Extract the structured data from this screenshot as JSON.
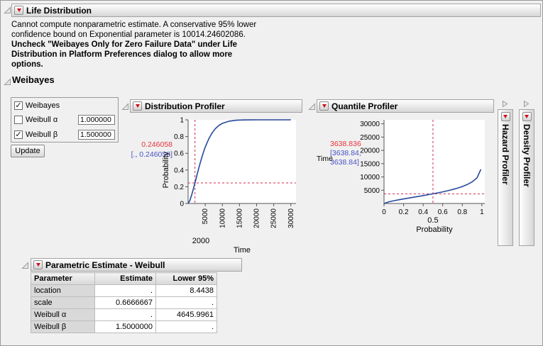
{
  "life_distribution": {
    "title": "Life Distribution",
    "message": [
      "Cannot compute nonparametric estimate. A conservative 95% lower",
      "confidence bound on Exponential parameter is 10014.24602086.",
      "Uncheck \"Weibayes Only for Zero Failure Data\" under Life",
      "Distribution in Platform Preferences dialog to allow more",
      "options."
    ]
  },
  "weibayes": {
    "title": "Weibayes",
    "options": [
      {
        "label": "Weibayes",
        "checked": true
      },
      {
        "label": "Weibull α",
        "checked": false,
        "value": "1.000000"
      },
      {
        "label": "Weibull β",
        "checked": true,
        "value": "1.500000"
      }
    ],
    "update_label": "Update"
  },
  "panels": {
    "distribution": {
      "title": "Distribution Profiler"
    },
    "quantile": {
      "title": "Quantile Profiler"
    },
    "hazard": {
      "title": "Hazard Profiler"
    },
    "density": {
      "title": "Density Profiler"
    }
  },
  "chart_data": [
    {
      "type": "line",
      "title": "Distribution Profiler",
      "xlabel": "Time",
      "ylabel": "Probability",
      "xlim": [
        0,
        31500
      ],
      "ylim": [
        0,
        1
      ],
      "xticks": [
        5000,
        10000,
        15000,
        20000,
        25000,
        30000
      ],
      "yticks": [
        0,
        0.2,
        0.4,
        0.6,
        0.8,
        1
      ],
      "xtick_rotate": true,
      "x": [
        0,
        500,
        1000,
        1500,
        2000,
        2500,
        3000,
        3500,
        4000,
        4500,
        5000,
        6000,
        7000,
        8000,
        9000,
        10000,
        12000,
        14000,
        16000,
        18000,
        20000,
        25000,
        30000
      ],
      "y": [
        0,
        0.035,
        0.095,
        0.168,
        0.246,
        0.326,
        0.405,
        0.48,
        0.55,
        0.615,
        0.673,
        0.77,
        0.843,
        0.896,
        0.933,
        0.958,
        0.984,
        0.995,
        0.998,
        0.9995,
        0.9999,
        1,
        1
      ],
      "crosshair": {
        "x": 2000,
        "y": 0.246058
      },
      "current_y": "0.246058",
      "ci_y": [
        "[., 0.246058]"
      ],
      "current_x": "2000"
    },
    {
      "type": "line",
      "title": "Quantile Profiler",
      "xlabel": "Probability",
      "ylabel": "Time",
      "xlim": [
        0,
        1.03
      ],
      "ylim": [
        0,
        31500
      ],
      "xticks": [
        0,
        0.2,
        0.4,
        0.6,
        0.8,
        1
      ],
      "yticks": [
        5000,
        10000,
        15000,
        20000,
        25000,
        30000
      ],
      "xtick_rotate": false,
      "x": [
        0,
        0.05,
        0.1,
        0.15,
        0.2,
        0.25,
        0.3,
        0.35,
        0.4,
        0.45,
        0.5,
        0.55,
        0.6,
        0.65,
        0.7,
        0.75,
        0.8,
        0.85,
        0.9,
        0.95,
        0.99
      ],
      "y": [
        0,
        641,
        1037,
        1383,
        1709,
        2025,
        2337,
        2650,
        2969,
        3297,
        3639,
        3999,
        4383,
        4799,
        5258,
        5776,
        6381,
        7121,
        8103,
        9650,
        12859
      ],
      "crosshair": {
        "x": 0.5,
        "y": 3638.836
      },
      "current_y": "3638.836",
      "ci_y": [
        "[3638.84,",
        "3638.84]"
      ],
      "current_x": "0.5"
    }
  ],
  "estimates": {
    "title": "Parametric Estimate - Weibull",
    "columns": [
      "Parameter",
      "Estimate",
      "Lower 95%"
    ],
    "rows": [
      [
        "location",
        ".",
        "8.4438"
      ],
      [
        "scale",
        "0.6666667",
        "."
      ],
      [
        "Weibull α",
        ".",
        "4645.9961"
      ],
      [
        "Weibull β",
        "1.5000000",
        "."
      ]
    ]
  },
  "colors": {
    "red": "#e8323c",
    "blue": "#4853c3",
    "curve": "#27489c",
    "crosshair": "#d42a50",
    "axis": "#555555"
  }
}
